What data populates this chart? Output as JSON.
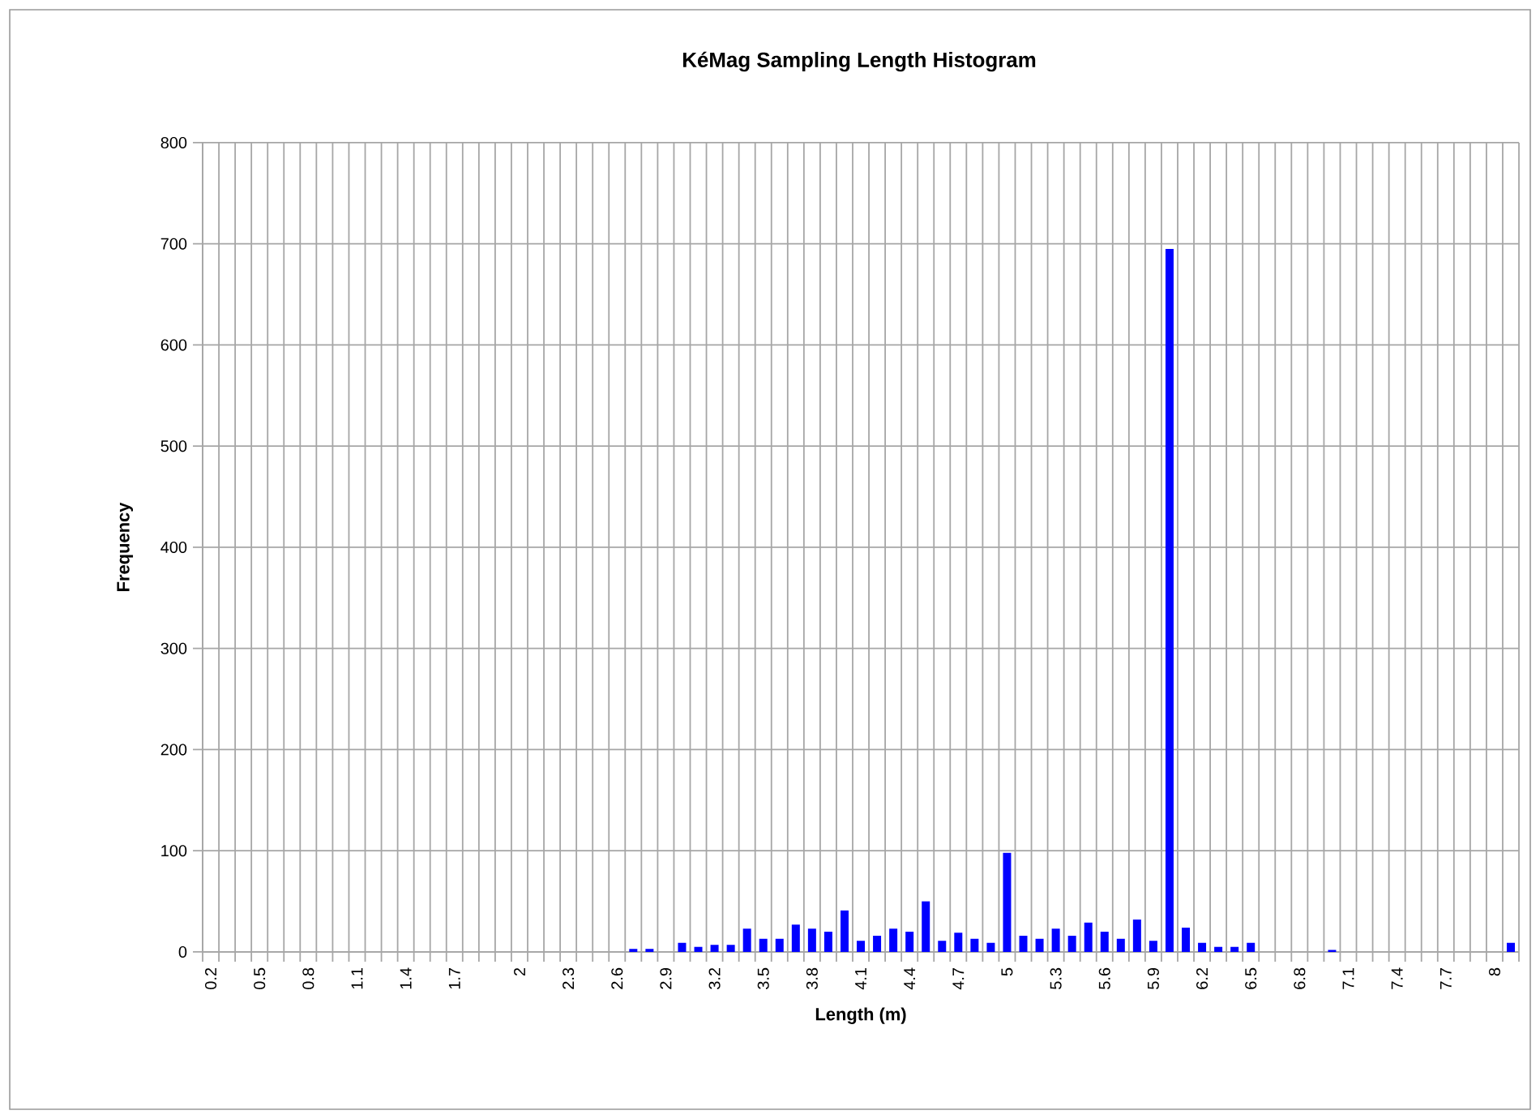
{
  "chart_data": {
    "type": "bar",
    "title": "KéMag Sampling Length Histogram",
    "xlabel": "Length (m)",
    "ylabel": "Frequency",
    "categories": [
      "0.2",
      null,
      null,
      "0.5",
      null,
      null,
      "0.8",
      null,
      null,
      "1.1",
      null,
      null,
      "1.4",
      null,
      null,
      "1.7",
      null,
      null,
      null,
      "2",
      null,
      null,
      "2.3",
      null,
      null,
      "2.6",
      null,
      null,
      "2.9",
      null,
      null,
      "3.2",
      null,
      null,
      "3.5",
      null,
      null,
      "3.8",
      null,
      null,
      "4.1",
      null,
      null,
      "4.4",
      null,
      null,
      "4.7",
      null,
      null,
      "5",
      null,
      null,
      "5.3",
      null,
      null,
      "5.6",
      null,
      null,
      "5.9",
      null,
      null,
      "6.2",
      null,
      null,
      "6.5",
      null,
      null,
      "6.8",
      null,
      null,
      "7.1",
      null,
      null,
      "7.4",
      null,
      null,
      "7.7",
      null,
      null,
      "8",
      null
    ],
    "values": [
      0,
      0,
      0,
      0,
      0,
      0,
      0,
      0,
      0,
      0,
      0,
      0,
      0,
      0,
      0,
      0,
      0,
      0,
      0,
      0,
      0,
      0,
      0,
      0,
      0,
      0,
      3,
      3,
      0,
      9,
      5,
      7,
      7,
      23,
      13,
      13,
      27,
      23,
      20,
      41,
      11,
      16,
      23,
      20,
      50,
      11,
      19,
      13,
      9,
      98,
      16,
      13,
      23,
      16,
      29,
      20,
      13,
      32,
      11,
      695,
      24,
      9,
      5,
      5,
      9,
      0,
      0,
      0,
      0,
      2,
      0,
      0,
      0,
      0,
      0,
      0,
      0,
      0,
      0,
      0,
      9
    ],
    "color": "#0000ff",
    "ylim": [
      0,
      800
    ],
    "yticks": [
      0,
      100,
      200,
      300,
      400,
      500,
      600,
      700,
      800
    ],
    "grid": true
  }
}
